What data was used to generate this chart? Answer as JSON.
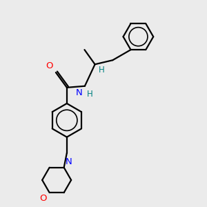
{
  "bg_color": "#ebebeb",
  "bond_color": "#000000",
  "N_color": "#0000ff",
  "O_color": "#ff0000",
  "H_color": "#008080",
  "line_width": 1.6,
  "figsize": [
    3.0,
    3.0
  ],
  "dpi": 100,
  "xlim": [
    0.0,
    6.0
  ],
  "ylim": [
    0.0,
    7.0
  ]
}
